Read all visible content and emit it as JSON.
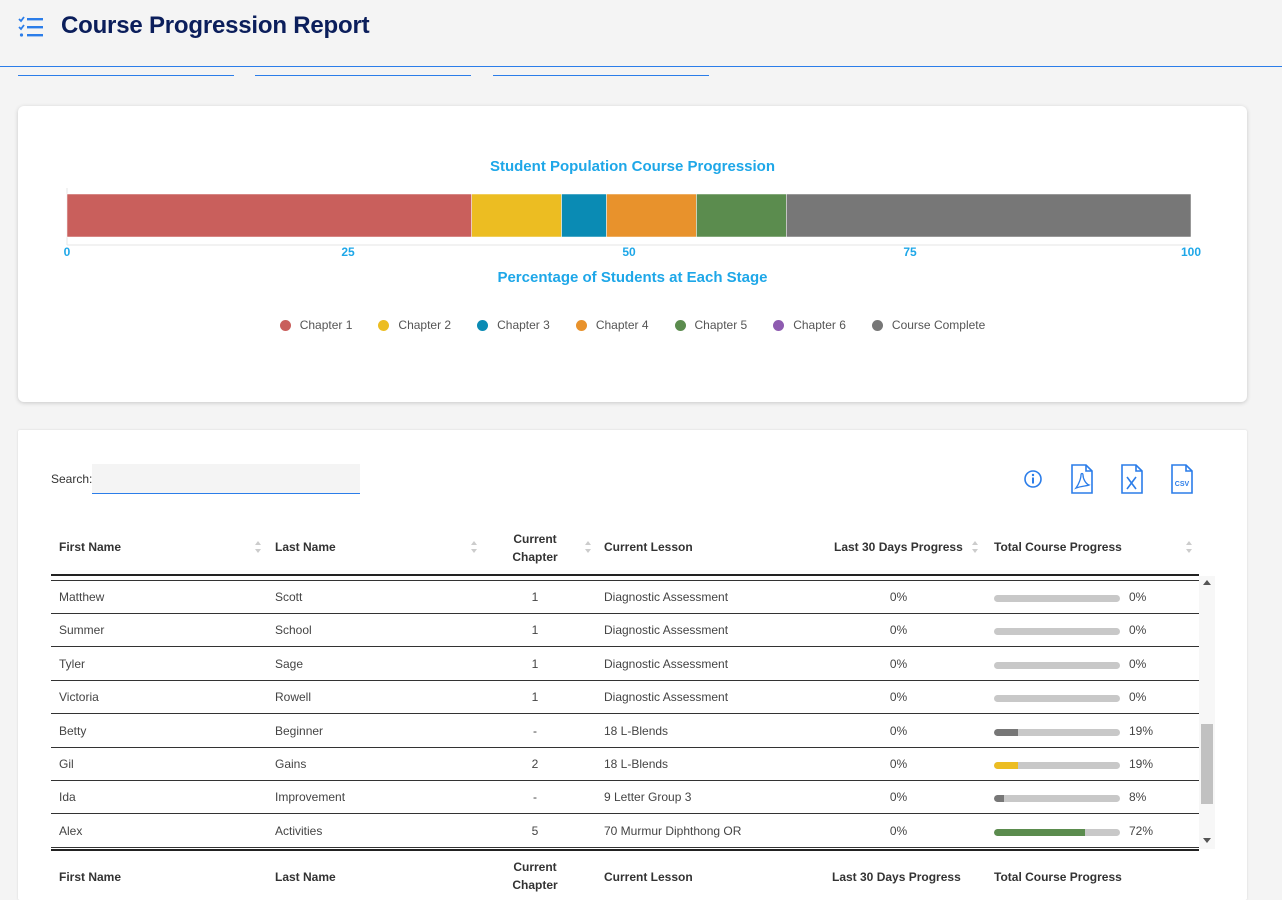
{
  "header": {
    "title": "Course Progression Report",
    "icon": "list-check-icon"
  },
  "chart": {
    "title": "Student Population Course Progression",
    "xlabel": "Percentage of Students at Each Stage"
  },
  "chart_data": {
    "type": "bar",
    "orientation": "horizontal-stacked",
    "title": "Student Population Course Progression",
    "xlabel": "Percentage of Students at Each Stage",
    "ylabel": "",
    "xlim": [
      0,
      100
    ],
    "xticks": [
      "0",
      "25",
      "50",
      "75",
      "100"
    ],
    "legend_position": "bottom",
    "grid": false,
    "series": [
      {
        "name": "Chapter 1",
        "value": 36,
        "color": "#c95f5c"
      },
      {
        "name": "Chapter 2",
        "value": 8,
        "color": "#ecbd22"
      },
      {
        "name": "Chapter 3",
        "value": 4,
        "color": "#0a8bb4"
      },
      {
        "name": "Chapter 4",
        "value": 8,
        "color": "#e8922c"
      },
      {
        "name": "Chapter 5",
        "value": 8,
        "color": "#5b8c4e"
      },
      {
        "name": "Chapter 6",
        "value": 0,
        "color": "#8e5bb0"
      },
      {
        "name": "Course Complete",
        "value": 36,
        "color": "#777777"
      }
    ]
  },
  "table": {
    "search_label": "Search:",
    "search_value": "",
    "tools": [
      "info-icon",
      "pdf-export-icon",
      "excel-export-icon",
      "csv-export-icon"
    ],
    "headers": {
      "first": "First Name",
      "last": "Last Name",
      "chapter_line1": "Current",
      "chapter_line2": "Chapter",
      "lesson": "Current Lesson",
      "last30": "Last 30 Days Progress",
      "total": "Total Course Progress"
    },
    "rows": [
      {
        "first": "Matthew",
        "last": "Scott",
        "chapter": "1",
        "lesson": "Diagnostic Assessment",
        "last30": "0%",
        "total": "0%",
        "progress": 0,
        "bar_color": "#777777"
      },
      {
        "first": "Summer",
        "last": "School",
        "chapter": "1",
        "lesson": "Diagnostic Assessment",
        "last30": "0%",
        "total": "0%",
        "progress": 0,
        "bar_color": "#777777"
      },
      {
        "first": "Tyler",
        "last": "Sage",
        "chapter": "1",
        "lesson": "Diagnostic Assessment",
        "last30": "0%",
        "total": "0%",
        "progress": 0,
        "bar_color": "#777777"
      },
      {
        "first": "Victoria",
        "last": "Rowell",
        "chapter": "1",
        "lesson": "Diagnostic Assessment",
        "last30": "0%",
        "total": "0%",
        "progress": 0,
        "bar_color": "#777777"
      },
      {
        "first": "Betty",
        "last": "Beginner",
        "chapter": "-",
        "lesson": "18 L-Blends",
        "last30": "0%",
        "total": "19%",
        "progress": 19,
        "bar_color": "#777777"
      },
      {
        "first": "Gil",
        "last": "Gains",
        "chapter": "2",
        "lesson": "18 L-Blends",
        "last30": "0%",
        "total": "19%",
        "progress": 19,
        "bar_color": "#ecbd22"
      },
      {
        "first": "Ida",
        "last": "Improvement",
        "chapter": "-",
        "lesson": "9 Letter Group 3",
        "last30": "0%",
        "total": "8%",
        "progress": 8,
        "bar_color": "#777777"
      },
      {
        "first": "Alex",
        "last": "Activities",
        "chapter": "5",
        "lesson": "70 Murmur Diphthong OR",
        "last30": "0%",
        "total": "72%",
        "progress": 72,
        "bar_color": "#5b8c4e"
      }
    ]
  }
}
